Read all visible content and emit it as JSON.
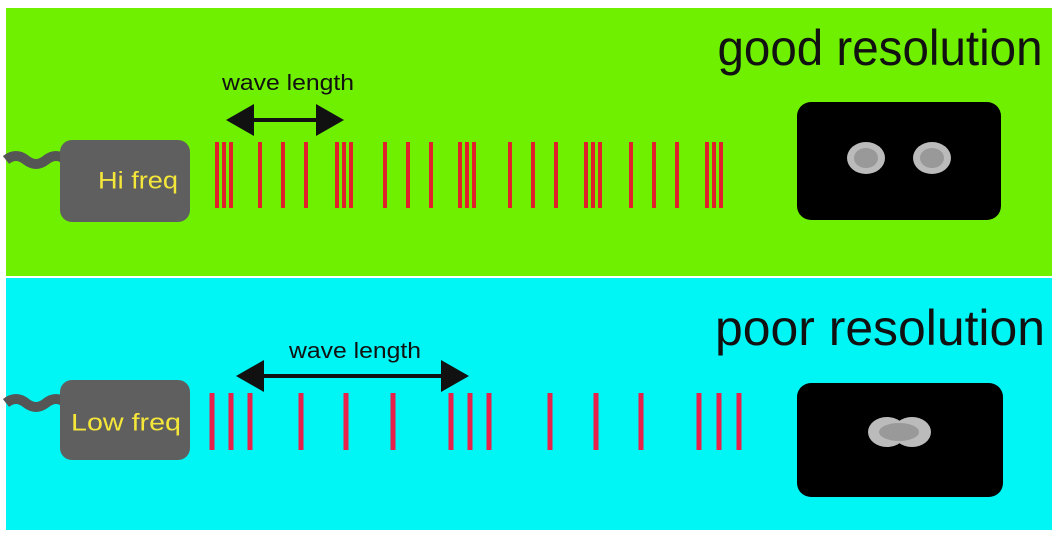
{
  "top": {
    "title": "good resolution",
    "wave_label": "wave length",
    "probe_label": "Hi freq"
  },
  "bottom": {
    "title": "poor resolution",
    "wave_label": "wave length",
    "probe_label": "Low freq"
  }
}
